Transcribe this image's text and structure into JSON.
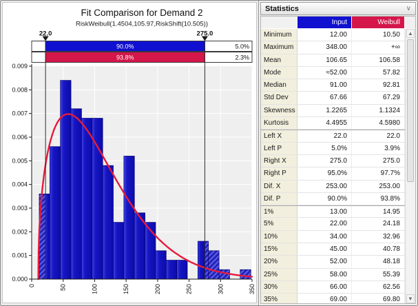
{
  "chart_data": {
    "type": "bar",
    "title": "Fit Comparison for Demand 2",
    "subtitle": "RiskWeibull(1.4504,105.97,RiskShift(10.505))",
    "xlabel": "",
    "ylabel": "",
    "xlim": [
      0,
      350
    ],
    "ylim": [
      0,
      0.009
    ],
    "x_ticks": [
      0,
      50,
      100,
      150,
      200,
      250,
      300,
      350
    ],
    "y_tick_step": 0.001,
    "grid": true,
    "colors": {
      "bar_light": "#4343e4",
      "bar_dark": "#0b0bab",
      "hatch_light": "#5f5fe8",
      "hatch_dark": "#2323b8",
      "curve": "#e61a3c",
      "plot_bg": "#efefef"
    },
    "histogram": {
      "bin_start": 12,
      "bin_width": 16.8,
      "densities": [
        0.0036,
        0.0056,
        0.0084,
        0.0072,
        0.0068,
        0.0068,
        0.0048,
        0.0024,
        0.0052,
        0.0028,
        0.0024,
        0.0012,
        0.0008,
        0.0008,
        0,
        0.0016,
        0.0012,
        0.0004,
        0,
        0.0004
      ]
    },
    "fit_curve": {
      "label": "Weibull",
      "distribution": "Weibull",
      "alpha": 1.4504,
      "beta": 105.97,
      "shift": 10.505
    },
    "delimiters": {
      "left_x": 22,
      "right_x": 275,
      "left_label": "22.0",
      "right_label": "275.0",
      "bands": [
        {
          "name": "input",
          "color": "#1010d0",
          "middle_text": "90.0%",
          "right_text": "5.0%"
        },
        {
          "name": "weibull",
          "color": "#d4164a",
          "middle_text": "93.8%",
          "right_text": "2.3%"
        }
      ]
    }
  },
  "stats_panel": {
    "title": "Statistics",
    "collapse_icon": "∨",
    "columns": [
      "",
      "Input",
      "Weibull"
    ],
    "header_colors": {
      "input": "#1010d0",
      "weibull": "#d4164a"
    },
    "group_breaks": [
      8,
      14
    ],
    "rows": [
      [
        "Minimum",
        "12.00",
        "10.50"
      ],
      [
        "Maximum",
        "348.00",
        "+∞"
      ],
      [
        "Mean",
        "106.65",
        "106.58"
      ],
      [
        "Mode",
        "≈52.00",
        "57.82"
      ],
      [
        "Median",
        "91.00",
        "92.81"
      ],
      [
        "Std Dev",
        "67.66",
        "67.29"
      ],
      [
        "Skewness",
        "1.2265",
        "1.1324"
      ],
      [
        "Kurtosis",
        "4.4955",
        "4.5980"
      ],
      [
        "Left X",
        "22.0",
        "22.0"
      ],
      [
        "Left P",
        "5.0%",
        "3.9%"
      ],
      [
        "Right X",
        "275.0",
        "275.0"
      ],
      [
        "Right P",
        "95.0%",
        "97.7%"
      ],
      [
        "Dif. X",
        "253.00",
        "253.00"
      ],
      [
        "Dif. P",
        "90.0%",
        "93.8%"
      ],
      [
        "1%",
        "13.00",
        "14.95"
      ],
      [
        "5%",
        "22.00",
        "24.18"
      ],
      [
        "10%",
        "34.00",
        "32.96"
      ],
      [
        "15%",
        "45.00",
        "40.78"
      ],
      [
        "20%",
        "52.00",
        "48.18"
      ],
      [
        "25%",
        "58.00",
        "55.39"
      ],
      [
        "30%",
        "66.00",
        "62.56"
      ],
      [
        "35%",
        "69.00",
        "69.80"
      ]
    ]
  }
}
